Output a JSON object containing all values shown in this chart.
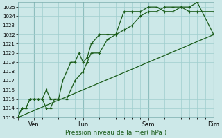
{
  "xlabel": "Pression niveau de la mer( hPa )",
  "bg_color": "#cce8e8",
  "grid_color": "#9fcece",
  "line_color": "#1a5c1a",
  "ylim": [
    1013,
    1025.5
  ],
  "yticks": [
    1013,
    1014,
    1015,
    1016,
    1017,
    1018,
    1019,
    1020,
    1021,
    1022,
    1023,
    1024,
    1025
  ],
  "xtick_pos": [
    0,
    1,
    4,
    8,
    12
  ],
  "xtick_labels": [
    "",
    "Ven",
    "Lun",
    "Sam",
    "Dim"
  ],
  "xlim": [
    0,
    12
  ],
  "vlines": [
    1,
    4,
    8,
    12
  ],
  "line1_x": [
    0,
    0.25,
    0.5,
    0.75,
    1.0,
    1.25,
    1.5,
    1.75,
    2.0,
    2.5,
    2.75,
    3.0,
    3.25,
    3.5,
    3.75,
    4.0,
    4.25,
    4.5,
    5.0,
    5.5,
    6.0,
    6.5,
    7.0,
    7.5,
    8.0,
    8.5,
    9.0,
    9.5,
    10.0,
    10.5,
    11.0,
    12.0
  ],
  "line1_y": [
    1013,
    1014,
    1014,
    1015,
    1015,
    1015,
    1015,
    1016,
    1015,
    1015,
    1017,
    1018,
    1019,
    1019,
    1020,
    1019,
    1019.5,
    1021,
    1022,
    1022,
    1022,
    1024.5,
    1024.5,
    1024.5,
    1025,
    1025,
    1024.5,
    1024.5,
    1025,
    1025,
    1025.5,
    1022
  ],
  "line2_x": [
    0,
    0.25,
    0.5,
    0.75,
    1.0,
    1.25,
    1.5,
    1.75,
    2.0,
    2.25,
    2.5,
    3.0,
    3.25,
    3.5,
    4.0,
    4.25,
    4.5,
    5.0,
    5.5,
    6.0,
    6.5,
    7.0,
    7.5,
    8.0,
    8.5,
    9.0,
    9.5,
    10.0,
    10.5,
    11.0,
    12.0
  ],
  "line2_y": [
    1013,
    1014,
    1014,
    1015,
    1015,
    1015,
    1015,
    1014,
    1014,
    1015,
    1015,
    1015,
    1016,
    1017,
    1018,
    1019,
    1020,
    1020,
    1021.5,
    1022,
    1022.5,
    1023,
    1024,
    1024.5,
    1024.5,
    1025,
    1025,
    1025,
    1024.5,
    1024.5,
    1024.5
  ],
  "line3_x": [
    0,
    12
  ],
  "line3_y": [
    1013,
    1022
  ]
}
